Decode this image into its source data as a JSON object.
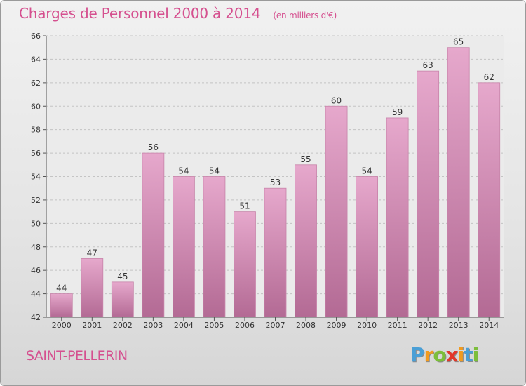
{
  "header": {
    "title": "Charges de Personnel 2000 à 2014",
    "subtitle": "(en milliers d'€)"
  },
  "footer": {
    "town": "SAINT-PELLERIN",
    "logo_letters": [
      "P",
      "r",
      "o",
      "x",
      "i",
      "t",
      "i"
    ],
    "logo_colors": [
      "#4a9fd6",
      "#f29b1f",
      "#7cbf3a",
      "#e2382b",
      "#f29b1f",
      "#4a9fd6",
      "#7cbf3a"
    ]
  },
  "chart_data": {
    "type": "bar",
    "title": "Charges de Personnel 2000 à 2014",
    "subtitle": "(en milliers d'€)",
    "xlabel": "",
    "ylabel": "",
    "categories": [
      "2000",
      "2001",
      "2002",
      "2003",
      "2004",
      "2005",
      "2006",
      "2007",
      "2008",
      "2009",
      "2010",
      "2011",
      "2012",
      "2013",
      "2014"
    ],
    "values": [
      44,
      47,
      45,
      56,
      54,
      54,
      51,
      53,
      55,
      60,
      54,
      59,
      63,
      65,
      62
    ],
    "ylim": [
      42,
      66
    ],
    "yticks": [
      42,
      44,
      46,
      48,
      50,
      52,
      54,
      56,
      58,
      60,
      62,
      64,
      66
    ],
    "grid": true,
    "colors": {
      "bar_top": "#e6a8cc",
      "bar_bottom": "#b36a94",
      "bar_edge": "#c783a9"
    }
  }
}
